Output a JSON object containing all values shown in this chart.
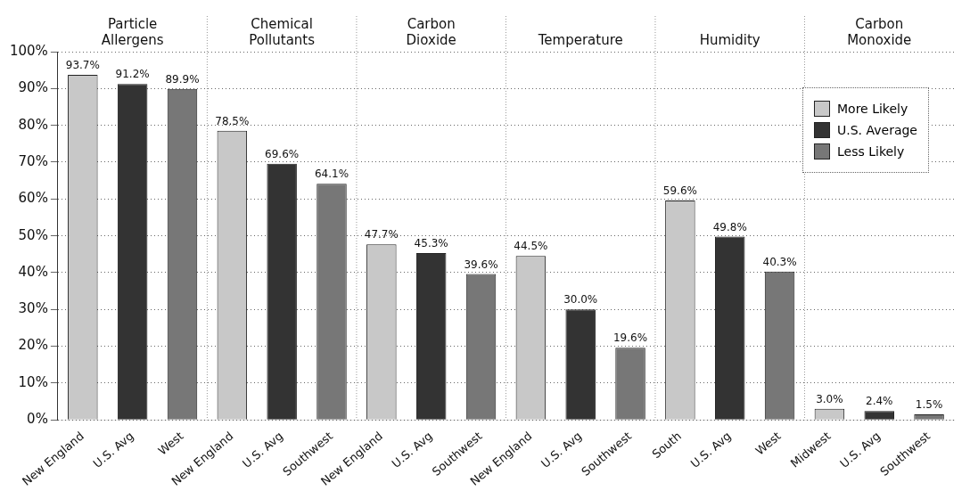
{
  "chart_data": {
    "type": "bar",
    "categories": [
      "New England",
      "U.S. Avg",
      "West",
      "New England",
      "U.S. Avg",
      "Southwest",
      "New England",
      "U.S. Avg",
      "Southwest",
      "New England",
      "U.S. Avg",
      "Southwest",
      "South",
      "U.S. Avg",
      "West",
      "Midwest",
      "U.S. Avg",
      "Southwest"
    ],
    "series": [
      {
        "name": "More Likely",
        "color": "#c8c8c8",
        "values": [
          93.7,
          null,
          null,
          78.5,
          null,
          null,
          47.7,
          null,
          null,
          44.5,
          null,
          null,
          59.6,
          null,
          null,
          3.0,
          null,
          null
        ],
        "value_labels": [
          "93.7%",
          null,
          null,
          "78.5%",
          null,
          null,
          "47.7%",
          null,
          null,
          "44.5%",
          null,
          null,
          "59.6%",
          null,
          null,
          "3.0%",
          null,
          null
        ]
      },
      {
        "name": "U.S. Average",
        "color": "#333333",
        "values": [
          null,
          91.2,
          null,
          null,
          69.6,
          null,
          null,
          45.3,
          null,
          null,
          30.0,
          null,
          null,
          49.8,
          null,
          null,
          2.4,
          null
        ],
        "value_labels": [
          null,
          "91.2%",
          null,
          null,
          "69.6%",
          null,
          null,
          "45.3%",
          null,
          null,
          "30.0%",
          null,
          null,
          "49.8%",
          null,
          null,
          "2.4%",
          null
        ]
      },
      {
        "name": "Less Likely",
        "color": "#777777",
        "values": [
          null,
          null,
          89.9,
          null,
          null,
          64.1,
          null,
          null,
          39.6,
          null,
          null,
          19.6,
          null,
          null,
          40.3,
          null,
          null,
          1.5
        ],
        "value_labels": [
          null,
          null,
          "89.9%",
          null,
          null,
          "64.1%",
          null,
          null,
          "39.6%",
          null,
          null,
          "19.6%",
          null,
          null,
          "40.3%",
          null,
          null,
          "1.5%"
        ]
      }
    ],
    "annotations": [
      "Particle Allergens",
      "Chemical Pollutants",
      "Carbon Dioxide",
      "Temperature",
      "Humidity",
      "Carbon Monoxide"
    ],
    "ylim": [
      0,
      100
    ],
    "yticks": [
      {
        "value": 0,
        "label": "0%"
      },
      {
        "value": 10,
        "label": "10%"
      },
      {
        "value": 20,
        "label": "20%"
      },
      {
        "value": 30,
        "label": "30%"
      },
      {
        "value": 40,
        "label": "40%"
      },
      {
        "value": 50,
        "label": "50%"
      },
      {
        "value": 60,
        "label": "60%"
      },
      {
        "value": 70,
        "label": "70%"
      },
      {
        "value": 80,
        "label": "80%"
      },
      {
        "value": 90,
        "label": "90%"
      },
      {
        "value": 100,
        "label": "100%"
      }
    ],
    "grid": "y",
    "legend": "top right"
  }
}
